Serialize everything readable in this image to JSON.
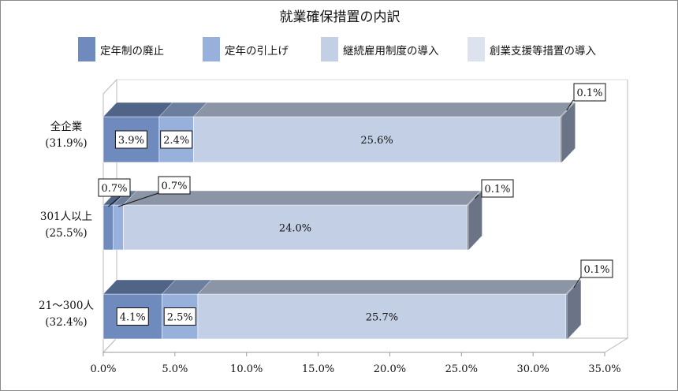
{
  "chart_data": {
    "type": "bar",
    "orientation": "horizontal",
    "stacked": true,
    "three_d": true,
    "title": "就業確保措置の内訳",
    "categories": [
      {
        "name": "全企業",
        "sub": "(31.9%)"
      },
      {
        "name": "301人以上",
        "sub": "(25.5%)"
      },
      {
        "name": "21〜300人",
        "sub": "(32.4%)"
      }
    ],
    "series": [
      {
        "name": "定年制の廃止",
        "color": "#6f8bbd",
        "values": [
          3.9,
          0.7,
          4.1
        ],
        "labels": [
          "3.9%",
          "0.7%",
          "4.1%"
        ]
      },
      {
        "name": "定年の引上げ",
        "color": "#98b1dc",
        "values": [
          2.4,
          0.7,
          2.5
        ],
        "labels": [
          "2.4%",
          "0.7%",
          "2.5%"
        ]
      },
      {
        "name": "継続雇用制度の導入",
        "color": "#c2cfe5",
        "values": [
          25.6,
          24.0,
          25.7
        ],
        "labels": [
          "25.6%",
          "24.0%",
          "25.7%"
        ]
      },
      {
        "name": "創業支援等措置の導入",
        "color": "#dde3ee",
        "values": [
          0.1,
          0.1,
          0.1
        ],
        "labels": [
          "0.1%",
          "0.1%",
          "0.1%"
        ]
      }
    ],
    "xlim": [
      0,
      35
    ],
    "xticks": [
      "0.0%",
      "5.0%",
      "10.0%",
      "15.0%",
      "20.0%",
      "25.0%",
      "30.0%",
      "35.0%"
    ],
    "legend_position": "top",
    "grid": false
  }
}
